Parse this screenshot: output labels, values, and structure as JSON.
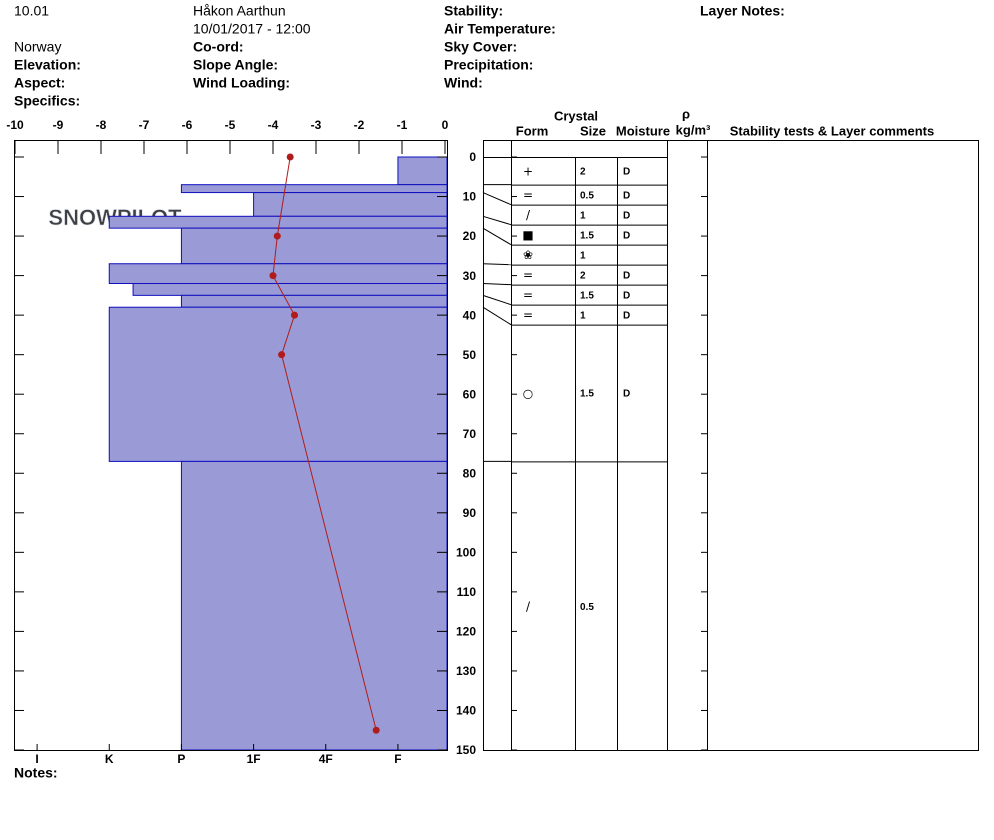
{
  "header": {
    "id": "10.01",
    "observer": "Håkon Aarthun",
    "datetime": "10/01/2017 - 12:00",
    "location": "Norway",
    "elevation": "Elevation:",
    "aspect": "Aspect:",
    "specifics": "Specifics:",
    "coord": "Co-ord:",
    "slope_angle": "Slope Angle:",
    "wind_loading": "Wind Loading:",
    "stability": "Stability:",
    "air_temperature": "Air Temperature:",
    "sky_cover": "Sky Cover:",
    "precipitation": "Precipitation:",
    "wind": "Wind:",
    "layer_notes": "Layer Notes:",
    "notes": "Notes:",
    "watermark": "SNOWPILOT"
  },
  "chart_data": {
    "type": "snow_profile",
    "ylim": [
      0,
      150
    ],
    "yticks": [
      0,
      10,
      20,
      30,
      40,
      50,
      60,
      70,
      80,
      90,
      100,
      110,
      120,
      130,
      140,
      150
    ],
    "temperature": {
      "xlim": [
        -10,
        0
      ],
      "xticks": [
        -10,
        -9,
        -8,
        -7,
        -6,
        -5,
        -4,
        -3,
        -2,
        -1,
        0
      ],
      "depth": [
        0,
        20,
        30,
        40,
        50,
        145
      ],
      "values": [
        -3.6,
        -3.9,
        -4.0,
        -3.5,
        -3.8,
        -1.6
      ],
      "color": "#b01c1c"
    },
    "hardness": {
      "xlim": [
        0.32,
        6.32
      ],
      "color": "#9a9ad6",
      "edge": "#1010c0",
      "xticks": [
        {
          "value": 6,
          "label": "I"
        },
        {
          "value": 5,
          "label": "K"
        },
        {
          "value": 4,
          "label": "P"
        },
        {
          "value": 3,
          "label": "1F"
        },
        {
          "value": 2,
          "label": "4F"
        },
        {
          "value": 1,
          "label": "F"
        }
      ]
    },
    "table_headers": {
      "crystal": "Crystal",
      "form": "Form",
      "size": "Size",
      "moisture": "Moisture",
      "rho": "ρ",
      "density": "kg/m³",
      "comments": "Stability tests & Layer comments"
    },
    "layers": [
      {
        "top": 0,
        "bottom": 7,
        "hardness": 1,
        "form": "+",
        "size": 2,
        "moisture": "D"
      },
      {
        "top": 7,
        "bottom": 9,
        "hardness": 4,
        "form": "=",
        "size": 0.5,
        "moisture": "D"
      },
      {
        "top": 9,
        "bottom": 15,
        "hardness": 3,
        "form": "/",
        "size": 1,
        "moisture": "D"
      },
      {
        "top": 15,
        "bottom": 18,
        "hardness": 5,
        "form": "■",
        "size": 1.5,
        "moisture": "D"
      },
      {
        "top": 18,
        "bottom": 27,
        "hardness": 4,
        "form": "❀",
        "size": 1,
        "moisture": null
      },
      {
        "top": 27,
        "bottom": 32,
        "hardness": 5,
        "form": "=",
        "size": 2,
        "moisture": "D"
      },
      {
        "top": 32,
        "bottom": 35,
        "hardness": 4.67,
        "form": "=",
        "size": 1.5,
        "moisture": "D"
      },
      {
        "top": 35,
        "bottom": 38,
        "hardness": 4,
        "form": "=",
        "size": 1,
        "moisture": "D"
      },
      {
        "top": 38,
        "bottom": 77,
        "hardness": 5,
        "form": "○",
        "size": 1.5,
        "moisture": "D"
      },
      {
        "top": 77,
        "bottom": 150,
        "hardness": 4,
        "form": "/",
        "size": 0.5,
        "moisture": null
      }
    ]
  }
}
